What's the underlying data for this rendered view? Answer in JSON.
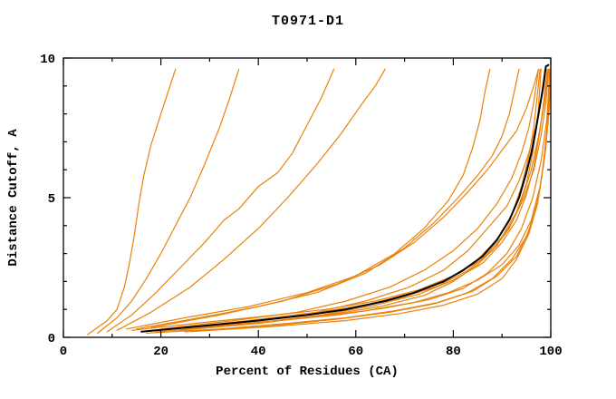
{
  "chart_data": {
    "type": "line",
    "title": "T0971-D1",
    "xlabel": "Percent of Residues (CA)",
    "ylabel": "Distance Cutoff, A",
    "xlim": [
      0,
      100
    ],
    "ylim": [
      0,
      10
    ],
    "x_major_ticks": [
      0,
      20,
      40,
      60,
      80,
      100
    ],
    "x_minor_step": 10,
    "y_major_ticks": [
      0,
      5,
      10
    ],
    "y_minor_step": 1,
    "grid": false,
    "legend": "none",
    "colors": {
      "model_line": "#e8820c",
      "highlight_line": "#000000",
      "axis": "#000000"
    },
    "series": [
      {
        "name": "orange-line-01",
        "color": "#e8820c",
        "width": 1.2,
        "points": [
          [
            5,
            0.1
          ],
          [
            9,
            0.6
          ],
          [
            11,
            1.0
          ],
          [
            12.5,
            1.8
          ],
          [
            13.5,
            2.6
          ],
          [
            14.5,
            3.6
          ],
          [
            15.5,
            4.8
          ],
          [
            16.5,
            5.8
          ],
          [
            18,
            6.9
          ],
          [
            20,
            8.0
          ],
          [
            21.5,
            8.8
          ],
          [
            23,
            9.6
          ]
        ]
      },
      {
        "name": "orange-line-02",
        "color": "#e8820c",
        "width": 1.2,
        "points": [
          [
            7,
            0.15
          ],
          [
            11,
            0.7
          ],
          [
            14,
            1.3
          ],
          [
            17,
            2.1
          ],
          [
            20,
            3.0
          ],
          [
            23,
            4.0
          ],
          [
            26,
            5.0
          ],
          [
            29,
            6.2
          ],
          [
            32,
            7.5
          ],
          [
            34,
            8.5
          ],
          [
            36,
            9.6
          ]
        ]
      },
      {
        "name": "orange-line-03",
        "color": "#e8820c",
        "width": 1.2,
        "points": [
          [
            9,
            0.2
          ],
          [
            14,
            0.8
          ],
          [
            19,
            1.6
          ],
          [
            24,
            2.5
          ],
          [
            29,
            3.4
          ],
          [
            33,
            4.2
          ],
          [
            36,
            4.6
          ],
          [
            40,
            5.4
          ],
          [
            44,
            5.9
          ],
          [
            47,
            6.6
          ],
          [
            50,
            7.6
          ],
          [
            53,
            8.6
          ],
          [
            55.5,
            9.6
          ]
        ]
      },
      {
        "name": "orange-line-04",
        "color": "#e8820c",
        "width": 1.2,
        "points": [
          [
            11,
            0.25
          ],
          [
            18,
            0.9
          ],
          [
            26,
            1.8
          ],
          [
            33,
            2.8
          ],
          [
            40,
            3.9
          ],
          [
            46,
            5.0
          ],
          [
            52,
            6.2
          ],
          [
            57,
            7.3
          ],
          [
            61,
            8.3
          ],
          [
            64,
            9.0
          ],
          [
            66,
            9.6
          ]
        ]
      },
      {
        "name": "orange-line-05",
        "color": "#e8820c",
        "width": 1.2,
        "points": [
          [
            13,
            0.3
          ],
          [
            25,
            0.7
          ],
          [
            38,
            1.1
          ],
          [
            50,
            1.6
          ],
          [
            60,
            2.2
          ],
          [
            68,
            3.0
          ],
          [
            74,
            3.9
          ],
          [
            79,
            4.9
          ],
          [
            82,
            5.8
          ],
          [
            84,
            6.8
          ],
          [
            85.5,
            7.8
          ],
          [
            86.5,
            8.8
          ],
          [
            87.5,
            9.6
          ]
        ]
      },
      {
        "name": "orange-line-06",
        "color": "#e8820c",
        "width": 1.2,
        "points": [
          [
            15,
            0.3
          ],
          [
            28,
            0.7
          ],
          [
            40,
            1.1
          ],
          [
            52,
            1.6
          ],
          [
            62,
            2.3
          ],
          [
            70,
            3.2
          ],
          [
            76,
            4.1
          ],
          [
            81,
            5.0
          ],
          [
            85,
            5.8
          ],
          [
            88,
            6.5
          ],
          [
            90,
            7.2
          ],
          [
            91.5,
            8.0
          ],
          [
            92.5,
            8.8
          ],
          [
            93.5,
            9.6
          ]
        ]
      },
      {
        "name": "orange-line-07",
        "color": "#e8820c",
        "width": 1.2,
        "points": [
          [
            18,
            0.35
          ],
          [
            32,
            0.8
          ],
          [
            45,
            1.3
          ],
          [
            56,
            1.9
          ],
          [
            65,
            2.6
          ],
          [
            72,
            3.4
          ],
          [
            78,
            4.3
          ],
          [
            83,
            5.2
          ],
          [
            87,
            6.0
          ],
          [
            90,
            6.7
          ],
          [
            93,
            7.4
          ],
          [
            95,
            8.2
          ],
          [
            96.5,
            9.0
          ],
          [
            97.5,
            9.6
          ]
        ]
      },
      {
        "name": "orange-line-08",
        "color": "#e8820c",
        "width": 1.2,
        "points": [
          [
            20,
            0.3
          ],
          [
            35,
            0.6
          ],
          [
            48,
            0.9
          ],
          [
            58,
            1.3
          ],
          [
            67,
            1.8
          ],
          [
            74,
            2.4
          ],
          [
            80,
            3.1
          ],
          [
            85,
            3.9
          ],
          [
            89,
            4.8
          ],
          [
            92,
            5.7
          ],
          [
            94,
            6.6
          ],
          [
            95.5,
            7.5
          ],
          [
            96.5,
            8.4
          ],
          [
            97.5,
            9.6
          ]
        ]
      },
      {
        "name": "orange-line-09",
        "color": "#e8820c",
        "width": 1.2,
        "points": [
          [
            22,
            0.3
          ],
          [
            38,
            0.6
          ],
          [
            52,
            0.9
          ],
          [
            62,
            1.3
          ],
          [
            71,
            1.8
          ],
          [
            78,
            2.4
          ],
          [
            83,
            3.1
          ],
          [
            87,
            3.9
          ],
          [
            91,
            4.7
          ],
          [
            93.5,
            5.6
          ],
          [
            95.5,
            6.6
          ],
          [
            97,
            7.6
          ],
          [
            98,
            8.6
          ],
          [
            98.8,
            9.6
          ]
        ]
      },
      {
        "name": "orange-line-10",
        "color": "#e8820c",
        "width": 1.2,
        "points": [
          [
            24,
            0.25
          ],
          [
            40,
            0.5
          ],
          [
            54,
            0.8
          ],
          [
            65,
            1.1
          ],
          [
            74,
            1.5
          ],
          [
            80,
            2.0
          ],
          [
            85,
            2.6
          ],
          [
            89,
            3.3
          ],
          [
            92,
            4.1
          ],
          [
            94.5,
            5.0
          ],
          [
            96.5,
            6.0
          ],
          [
            98,
            7.2
          ],
          [
            99,
            8.4
          ],
          [
            99.6,
            9.6
          ]
        ]
      },
      {
        "name": "orange-line-11",
        "color": "#e8820c",
        "width": 1.2,
        "points": [
          [
            25,
            0.2
          ],
          [
            42,
            0.4
          ],
          [
            56,
            0.65
          ],
          [
            67,
            0.9
          ],
          [
            76,
            1.2
          ],
          [
            83,
            1.6
          ],
          [
            88,
            2.1
          ],
          [
            92,
            2.8
          ],
          [
            95,
            3.6
          ],
          [
            97,
            4.6
          ],
          [
            98.2,
            5.8
          ],
          [
            99,
            7.0
          ],
          [
            99.6,
            8.3
          ],
          [
            100,
            9.6
          ]
        ]
      },
      {
        "name": "orange-line-12",
        "color": "#e8820c",
        "width": 1.2,
        "points": [
          [
            18,
            0.25
          ],
          [
            33,
            0.5
          ],
          [
            47,
            0.75
          ],
          [
            59,
            1.05
          ],
          [
            69,
            1.4
          ],
          [
            77,
            1.85
          ],
          [
            83,
            2.4
          ],
          [
            88,
            3.1
          ],
          [
            91.5,
            3.9
          ],
          [
            94,
            4.9
          ],
          [
            96,
            6.0
          ],
          [
            97.5,
            7.2
          ],
          [
            98.7,
            8.4
          ],
          [
            99.5,
            9.6
          ]
        ]
      },
      {
        "name": "orange-line-13",
        "color": "#e8820c",
        "width": 1.2,
        "points": [
          [
            16,
            0.2
          ],
          [
            30,
            0.4
          ],
          [
            44,
            0.6
          ],
          [
            56,
            0.8
          ],
          [
            66,
            1.05
          ],
          [
            75,
            1.35
          ],
          [
            82,
            1.75
          ],
          [
            87,
            2.3
          ],
          [
            91,
            3.0
          ],
          [
            94,
            3.9
          ],
          [
            96.3,
            5.0
          ],
          [
            98,
            6.3
          ],
          [
            99.2,
            7.8
          ],
          [
            99.8,
            9.6
          ]
        ]
      },
      {
        "name": "orange-line-14",
        "color": "#e8820c",
        "width": 1.2,
        "points": [
          [
            17,
            0.15
          ],
          [
            32,
            0.3
          ],
          [
            46,
            0.5
          ],
          [
            58,
            0.7
          ],
          [
            68,
            0.95
          ],
          [
            77,
            1.25
          ],
          [
            84,
            1.65
          ],
          [
            89,
            2.2
          ],
          [
            93,
            2.9
          ],
          [
            95.5,
            3.8
          ],
          [
            97.5,
            5.0
          ],
          [
            98.8,
            6.5
          ],
          [
            99.5,
            8.0
          ],
          [
            100,
            9.6
          ]
        ]
      },
      {
        "name": "orange-line-15",
        "color": "#e8820c",
        "width": 1.2,
        "points": [
          [
            19,
            0.2
          ],
          [
            36,
            0.45
          ],
          [
            50,
            0.7
          ],
          [
            62,
            0.95
          ],
          [
            72,
            1.25
          ],
          [
            79,
            1.6
          ],
          [
            85,
            2.05
          ],
          [
            90,
            2.6
          ],
          [
            93.5,
            3.3
          ],
          [
            96,
            4.2
          ],
          [
            97.8,
            5.4
          ],
          [
            99,
            6.8
          ],
          [
            99.7,
            8.2
          ],
          [
            100,
            9.6
          ]
        ]
      },
      {
        "name": "orange-line-16",
        "color": "#e8820c",
        "width": 1.2,
        "points": [
          [
            21,
            0.3
          ],
          [
            37,
            0.55
          ],
          [
            51,
            0.85
          ],
          [
            63,
            1.2
          ],
          [
            72,
            1.6
          ],
          [
            79,
            2.1
          ],
          [
            84.5,
            2.7
          ],
          [
            89,
            3.5
          ],
          [
            92,
            4.4
          ],
          [
            94,
            5.4
          ],
          [
            95.5,
            6.5
          ],
          [
            96.5,
            7.5
          ],
          [
            97.2,
            8.6
          ],
          [
            97.8,
            9.6
          ]
        ]
      },
      {
        "name": "orange-line-17",
        "color": "#e8820c",
        "width": 1.2,
        "points": [
          [
            23,
            0.25
          ],
          [
            39,
            0.5
          ],
          [
            53,
            0.8
          ],
          [
            64,
            1.15
          ],
          [
            73,
            1.55
          ],
          [
            80,
            2.05
          ],
          [
            86,
            2.65
          ],
          [
            90,
            3.4
          ],
          [
            93,
            4.2
          ],
          [
            95,
            5.1
          ],
          [
            96.5,
            6.1
          ],
          [
            97.7,
            7.3
          ],
          [
            98.6,
            8.5
          ],
          [
            99.3,
            9.6
          ]
        ]
      },
      {
        "name": "orange-line-18",
        "color": "#e8820c",
        "width": 1.2,
        "points": [
          [
            26,
            0.2
          ],
          [
            44,
            0.4
          ],
          [
            58,
            0.6
          ],
          [
            69,
            0.85
          ],
          [
            78,
            1.15
          ],
          [
            85,
            1.55
          ],
          [
            90,
            2.1
          ],
          [
            93,
            2.8
          ],
          [
            95.5,
            3.7
          ],
          [
            97.3,
            4.8
          ],
          [
            98.5,
            6.2
          ],
          [
            99.3,
            7.6
          ],
          [
            99.8,
            9.0
          ],
          [
            100,
            9.6
          ]
        ]
      },
      {
        "name": "orange-line-19",
        "color": "#e8820c",
        "width": 1.2,
        "points": [
          [
            14,
            0.25
          ],
          [
            27,
            0.5
          ],
          [
            41,
            0.75
          ],
          [
            54,
            1.0
          ],
          [
            64,
            1.3
          ],
          [
            73,
            1.7
          ],
          [
            80,
            2.2
          ],
          [
            86,
            2.8
          ],
          [
            90,
            3.6
          ],
          [
            93,
            4.5
          ],
          [
            95,
            5.5
          ],
          [
            96.3,
            6.6
          ],
          [
            97.3,
            7.8
          ],
          [
            98,
            9.6
          ]
        ]
      },
      {
        "name": "black-line",
        "color": "#000000",
        "width": 2,
        "points": [
          [
            16,
            0.2
          ],
          [
            28,
            0.4
          ],
          [
            40,
            0.6
          ],
          [
            50,
            0.8
          ],
          [
            58,
            1.0
          ],
          [
            66,
            1.3
          ],
          [
            72,
            1.6
          ],
          [
            78,
            2.0
          ],
          [
            82,
            2.4
          ],
          [
            86,
            2.9
          ],
          [
            89,
            3.5
          ],
          [
            91.5,
            4.2
          ],
          [
            93.5,
            5.0
          ],
          [
            95,
            5.9
          ],
          [
            96,
            6.6
          ],
          [
            96.8,
            7.3
          ],
          [
            97.5,
            8.0
          ],
          [
            98.5,
            9.0
          ],
          [
            99,
            9.7
          ],
          [
            99.5,
            9.75
          ]
        ]
      }
    ]
  }
}
